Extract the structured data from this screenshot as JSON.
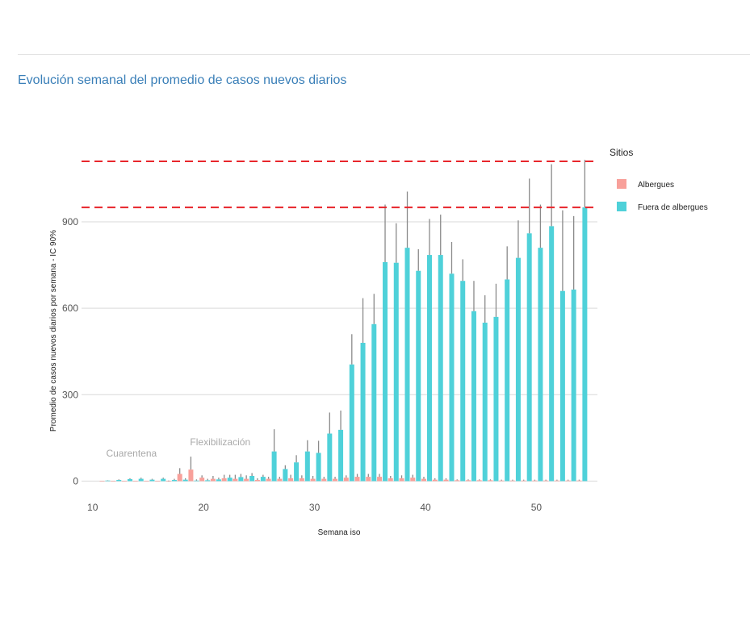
{
  "page": {
    "title": "Evolución semanal del promedio de casos nuevos diarios"
  },
  "chart_data": {
    "type": "bar",
    "xlabel": "Semana iso",
    "ylabel": "Promedio de casos nuevos diarios por semana - IC 90%",
    "xlim": [
      9,
      55.5
    ],
    "ylim": [
      -10,
      1110
    ],
    "x_ticks": [
      10,
      20,
      30,
      40,
      50
    ],
    "y_ticks": [
      0,
      300,
      600,
      900
    ],
    "grid": true,
    "legend": {
      "title": "Sitios",
      "position": "right"
    },
    "colors": {
      "Albergues": "#f8a09a",
      "Fuera de albergues": "#4fd1d9",
      "error_bar": "#8a8a8a",
      "reference_line": "#e8262c"
    },
    "reference_lines": [
      950,
      1110
    ],
    "annotations": [
      {
        "text": "Cuarentena",
        "x": 13.5,
        "y": 85
      },
      {
        "text": "Flexibilización",
        "x": 21.5,
        "y": 125
      }
    ],
    "x": [
      11,
      12,
      13,
      14,
      15,
      16,
      17,
      18,
      19,
      20,
      21,
      22,
      23,
      24,
      25,
      26,
      27,
      28,
      29,
      30,
      31,
      32,
      33,
      34,
      35,
      36,
      37,
      38,
      39,
      40,
      41,
      42,
      43,
      44,
      45,
      46,
      47,
      48,
      49,
      50,
      51,
      52,
      53,
      54
    ],
    "series": [
      {
        "name": "Albergues",
        "values": [
          0,
          0,
          0,
          0,
          0,
          0,
          0,
          25,
          40,
          12,
          8,
          10,
          8,
          8,
          4,
          8,
          8,
          10,
          10,
          8,
          8,
          8,
          12,
          15,
          15,
          15,
          10,
          10,
          12,
          8,
          5,
          5,
          3,
          3,
          3,
          3,
          2,
          2,
          2,
          2,
          2,
          2,
          2,
          2
        ],
        "upper": [
          0,
          0,
          0,
          0,
          0,
          0,
          2,
          45,
          85,
          20,
          18,
          22,
          22,
          20,
          10,
          15,
          15,
          22,
          20,
          18,
          15,
          15,
          20,
          25,
          25,
          25,
          18,
          20,
          22,
          15,
          10,
          10,
          6,
          6,
          6,
          6,
          5,
          5,
          5,
          5,
          5,
          5,
          5,
          5
        ]
      },
      {
        "name": "Fuera de albergues",
        "values": [
          2,
          4,
          7,
          8,
          5,
          8,
          4,
          5,
          2,
          3,
          6,
          12,
          14,
          18,
          15,
          103,
          42,
          65,
          103,
          98,
          165,
          178,
          405,
          480,
          545,
          760,
          758,
          810,
          730,
          785,
          785,
          720,
          695,
          590,
          550,
          570,
          700,
          775,
          860,
          810,
          885,
          660,
          665,
          950
        ],
        "upper": [
          3,
          6,
          10,
          12,
          8,
          12,
          8,
          10,
          6,
          8,
          12,
          22,
          25,
          28,
          22,
          180,
          55,
          90,
          142,
          140,
          238,
          245,
          510,
          635,
          650,
          960,
          895,
          1005,
          805,
          910,
          925,
          830,
          770,
          695,
          645,
          685,
          815,
          905,
          1050,
          960,
          1100,
          940,
          920,
          1115
        ]
      }
    ]
  }
}
